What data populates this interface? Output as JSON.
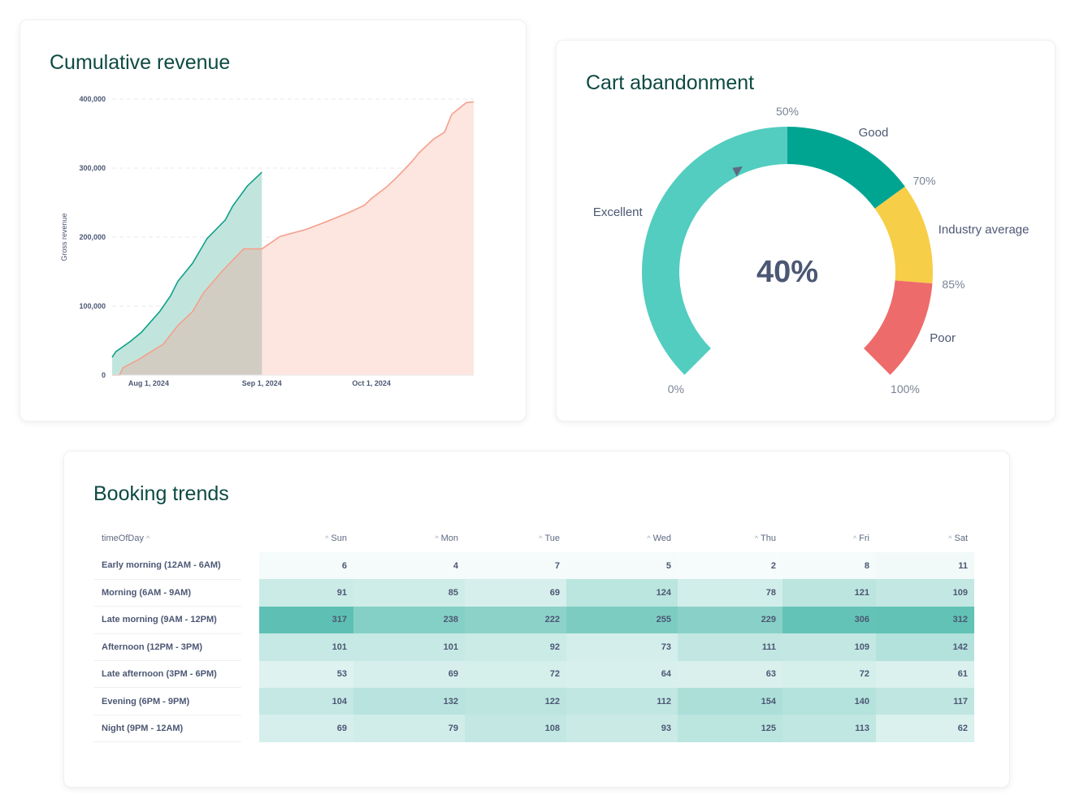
{
  "revenue_card": {
    "title": "Cumulative revenue"
  },
  "cart_card": {
    "title": "Cart abandonment"
  },
  "booking_card": {
    "title": "Booking trends"
  },
  "chart_data": [
    {
      "type": "area",
      "title": "Cumulative revenue",
      "xlabel": "",
      "ylabel": "Gross revenue",
      "ylim": [
        0,
        400000
      ],
      "xlim": [
        "2024-07-22",
        "2024-10-29"
      ],
      "yticks": [
        "0",
        "100,000",
        "200,000",
        "300,000",
        "400,000"
      ],
      "yticks_values": [
        0,
        100000,
        200000,
        300000,
        400000
      ],
      "xticks": [
        "Aug 1, 2024",
        "Sep 1, 2024",
        "Oct 1, 2024"
      ],
      "xticks_dates": [
        "2024-08-01",
        "2024-09-01",
        "2024-10-01"
      ],
      "grid": true,
      "series": [
        {
          "color": "#0f9f8a",
          "fill": "#c1e5dd",
          "points": [
            [
              "2024-07-22",
              26000
            ],
            [
              "2024-07-23",
              34000
            ],
            [
              "2024-07-27",
              49000
            ],
            [
              "2024-07-30",
              62000
            ],
            [
              "2024-08-04",
              92000
            ],
            [
              "2024-08-07",
              115000
            ],
            [
              "2024-08-09",
              136000
            ],
            [
              "2024-08-13",
              162000
            ],
            [
              "2024-08-17",
              198000
            ],
            [
              "2024-08-22",
              225000
            ],
            [
              "2024-08-24",
              245000
            ],
            [
              "2024-08-28",
              274000
            ],
            [
              "2024-09-01",
              294000
            ]
          ]
        },
        {
          "color": "#f4a08b",
          "fill": "#fde0da",
          "points": [
            [
              "2024-07-22",
              0
            ],
            [
              "2024-07-24",
              0
            ],
            [
              "2024-07-25",
              11000
            ],
            [
              "2024-07-29",
              22000
            ],
            [
              "2024-08-05",
              45000
            ],
            [
              "2024-08-09",
              72000
            ],
            [
              "2024-08-13",
              92000
            ],
            [
              "2024-08-16",
              119000
            ],
            [
              "2024-08-21",
              150000
            ],
            [
              "2024-08-27",
              183000
            ],
            [
              "2024-09-01",
              183000
            ],
            [
              "2024-09-06",
              201000
            ],
            [
              "2024-09-13",
              211000
            ],
            [
              "2024-09-18",
              221000
            ],
            [
              "2024-09-25",
              236000
            ],
            [
              "2024-09-29",
              246000
            ],
            [
              "2024-10-01",
              256000
            ],
            [
              "2024-10-05",
              272000
            ],
            [
              "2024-10-08",
              287000
            ],
            [
              "2024-10-12",
              309000
            ],
            [
              "2024-10-14",
              322000
            ],
            [
              "2024-10-18",
              342000
            ],
            [
              "2024-10-21",
              352000
            ],
            [
              "2024-10-23",
              378000
            ],
            [
              "2024-10-27",
              395000
            ],
            [
              "2024-10-29",
              396000
            ]
          ]
        }
      ]
    },
    {
      "type": "gauge",
      "title": "Cart abandonment",
      "value": 40,
      "value_label": "40%",
      "range": [
        0,
        100
      ],
      "segments": [
        {
          "from": 0,
          "to": 50,
          "label": "Excellent",
          "color": "#52cdc0"
        },
        {
          "from": 50,
          "to": 70,
          "label": "Good",
          "color": "#00a592"
        },
        {
          "from": 70,
          "to": 85,
          "label": "Industry average",
          "color": "#f7ce47"
        },
        {
          "from": 85,
          "to": 100,
          "label": "Poor",
          "color": "#ee6b6b"
        }
      ],
      "tick_labels": [
        "0%",
        "50%",
        "70%",
        "85%",
        "100%"
      ],
      "tick_values": [
        0,
        50,
        70,
        85,
        100
      ]
    },
    {
      "type": "heatmap",
      "title": "Booking trends",
      "row_header": "timeOfDay",
      "columns": [
        "Sun",
        "Mon",
        "Tue",
        "Wed",
        "Thu",
        "Fri",
        "Sat"
      ],
      "rows": [
        {
          "label": "Early morning (12AM - 6AM)",
          "values": [
            6,
            4,
            7,
            5,
            2,
            8,
            11
          ]
        },
        {
          "label": "Morning (6AM - 9AM)",
          "values": [
            91,
            85,
            69,
            124,
            78,
            121,
            109
          ]
        },
        {
          "label": "Late morning (9AM - 12PM)",
          "values": [
            317,
            238,
            222,
            255,
            229,
            306,
            312
          ]
        },
        {
          "label": "Afternoon (12PM - 3PM)",
          "values": [
            101,
            101,
            92,
            73,
            111,
            109,
            142
          ]
        },
        {
          "label": "Late afternoon (3PM - 6PM)",
          "values": [
            53,
            69,
            72,
            64,
            63,
            72,
            61
          ]
        },
        {
          "label": "Evening (6PM - 9PM)",
          "values": [
            104,
            132,
            122,
            112,
            154,
            140,
            117
          ]
        },
        {
          "label": "Night (9PM - 12AM)",
          "values": [
            69,
            79,
            108,
            93,
            125,
            113,
            62
          ]
        }
      ],
      "color": "#009c88"
    }
  ]
}
